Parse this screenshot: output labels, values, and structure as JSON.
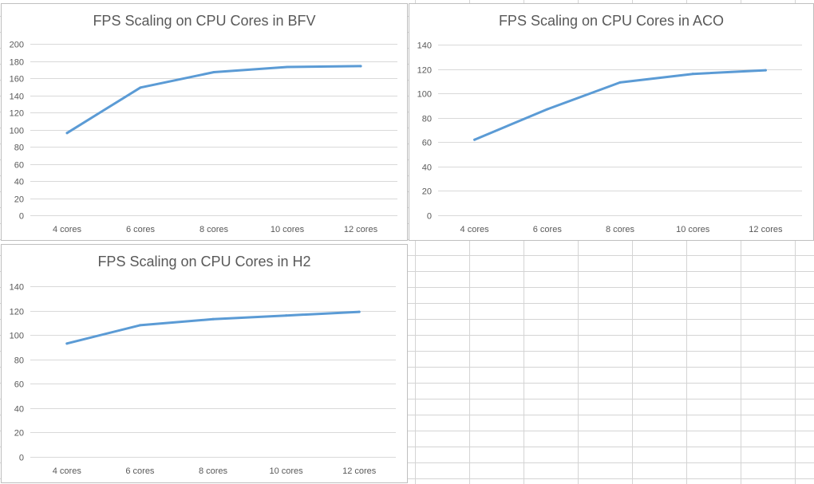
{
  "style": {
    "series_color": "#5b9bd5",
    "grid_color": "#d9d9d9",
    "text_color": "#595959"
  },
  "chart_data": [
    {
      "id": "bfv",
      "type": "line",
      "title": "FPS Scaling on CPU Cores in BFV",
      "categories": [
        "4 cores",
        "6 cores",
        "8 cores",
        "10 cores",
        "12 cores"
      ],
      "series": [
        {
          "values": [
            96,
            149,
            167,
            173,
            174
          ]
        }
      ],
      "yticks": [
        0,
        20,
        40,
        60,
        80,
        100,
        120,
        140,
        160,
        180,
        200
      ],
      "ylim": [
        0,
        200
      ],
      "grid": true,
      "legend": "none"
    },
    {
      "id": "aco",
      "type": "line",
      "title": "FPS Scaling on CPU Cores in ACO",
      "categories": [
        "4 cores",
        "6 cores",
        "8 cores",
        "10 cores",
        "12 cores"
      ],
      "series": [
        {
          "values": [
            62,
            87,
            109,
            116,
            119
          ]
        }
      ],
      "yticks": [
        0,
        20,
        40,
        60,
        80,
        100,
        120,
        140
      ],
      "ylim": [
        0,
        140
      ],
      "grid": true,
      "legend": "none"
    },
    {
      "id": "h2",
      "type": "line",
      "title": "FPS Scaling on CPU Cores in H2",
      "categories": [
        "4 cores",
        "6 cores",
        "8 cores",
        "10 cores",
        "12 cores"
      ],
      "series": [
        {
          "values": [
            93,
            108,
            113,
            116,
            119
          ]
        }
      ],
      "yticks": [
        0,
        20,
        40,
        60,
        80,
        100,
        120,
        140
      ],
      "ylim": [
        0,
        140
      ],
      "grid": true,
      "legend": "none"
    }
  ]
}
